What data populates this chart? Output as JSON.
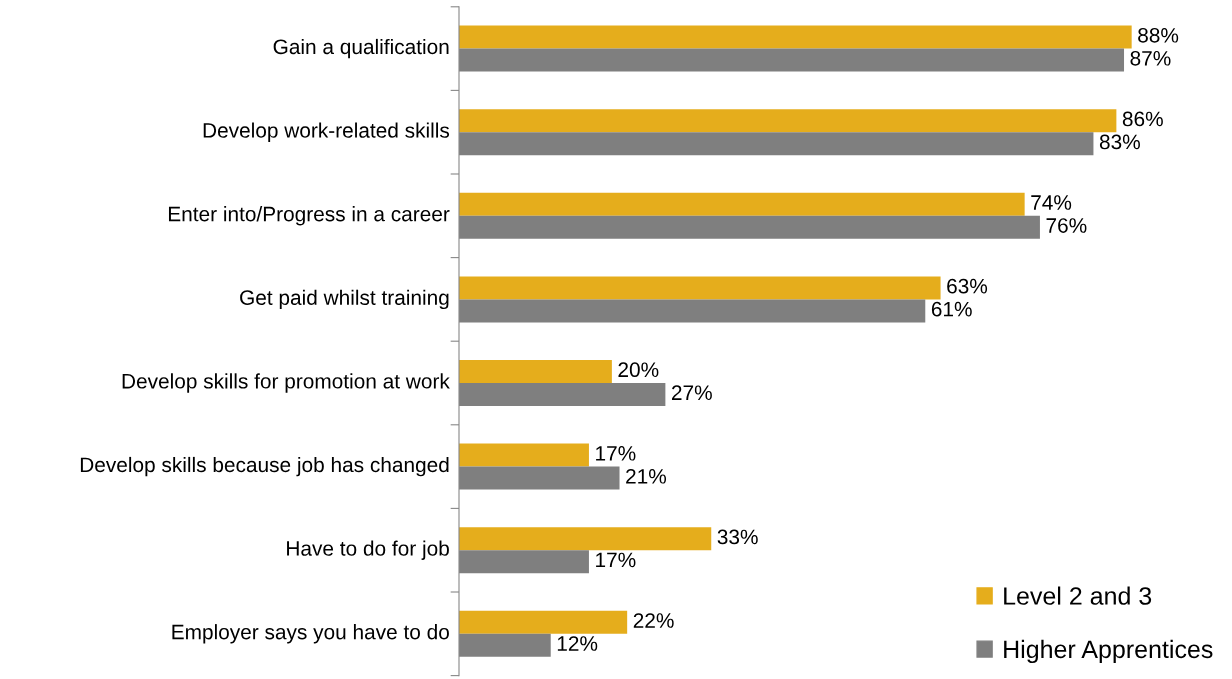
{
  "chart_data": {
    "type": "bar",
    "orientation": "horizontal",
    "categories": [
      "Gain a qualification",
      "Develop work-related skills",
      "Enter into/Progress in a career",
      "Get paid whilst training",
      "Develop skills for promotion at work",
      "Develop skills because job has changed",
      "Have to do for job",
      "Employer says you have to do"
    ],
    "series": [
      {
        "name": "Level 2 and 3",
        "color": "#e5ad1c",
        "values": [
          88,
          86,
          74,
          63,
          20,
          17,
          33,
          22
        ],
        "value_labels": [
          "88%",
          "86%",
          "74%",
          "63%",
          "20%",
          "17%",
          "33%",
          "22%"
        ]
      },
      {
        "name": "Higher Apprentices",
        "color": "#7f7f7f",
        "values": [
          87,
          83,
          76,
          61,
          27,
          21,
          17,
          12
        ],
        "value_labels": [
          "87%",
          "83%",
          "76%",
          "61%",
          "27%",
          "21%",
          "17%",
          "12%"
        ]
      }
    ],
    "legend": "bottom right",
    "grid": false
  }
}
